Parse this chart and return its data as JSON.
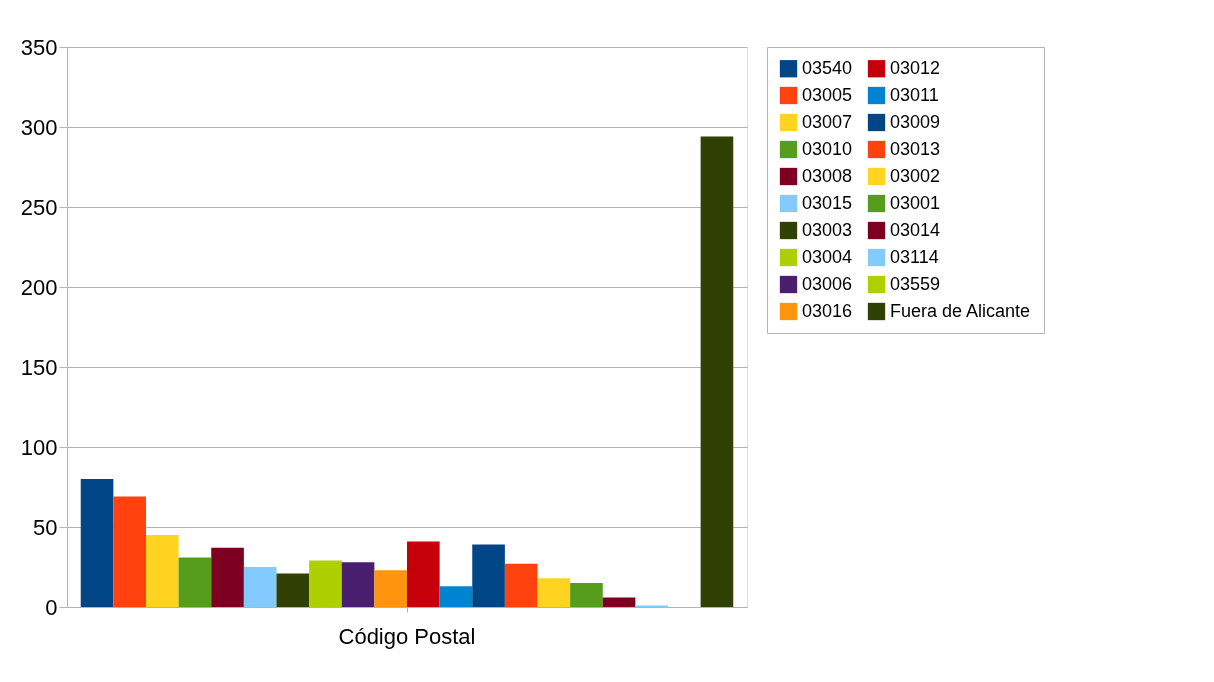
{
  "chart_data": {
    "type": "bar",
    "categories": [
      "Código Postal"
    ],
    "series": [
      {
        "name": "03540",
        "color": "#004586",
        "values": [
          80
        ]
      },
      {
        "name": "03005",
        "color": "#ff420e",
        "values": [
          69
        ]
      },
      {
        "name": "03007",
        "color": "#ffd320",
        "values": [
          45
        ]
      },
      {
        "name": "03010",
        "color": "#579d1c",
        "values": [
          31
        ]
      },
      {
        "name": "03008",
        "color": "#7e0021",
        "values": [
          37
        ]
      },
      {
        "name": "03015",
        "color": "#83caff",
        "values": [
          25
        ]
      },
      {
        "name": "03003",
        "color": "#314004",
        "values": [
          21
        ]
      },
      {
        "name": "03004",
        "color": "#aecf00",
        "values": [
          29
        ]
      },
      {
        "name": "03006",
        "color": "#4b1f6f",
        "values": [
          28
        ]
      },
      {
        "name": "03016",
        "color": "#ff950e",
        "values": [
          23
        ]
      },
      {
        "name": "03012",
        "color": "#c5000b",
        "values": [
          41
        ]
      },
      {
        "name": "03011",
        "color": "#0084d1",
        "values": [
          13
        ]
      },
      {
        "name": "03009",
        "color": "#004586",
        "values": [
          39
        ]
      },
      {
        "name": "03013",
        "color": "#ff420e",
        "values": [
          27
        ]
      },
      {
        "name": "03002",
        "color": "#ffd320",
        "values": [
          18
        ]
      },
      {
        "name": "03001",
        "color": "#579d1c",
        "values": [
          15
        ]
      },
      {
        "name": "03014",
        "color": "#7e0021",
        "values": [
          6
        ]
      },
      {
        "name": "03114",
        "color": "#83caff",
        "values": [
          1
        ]
      },
      {
        "name": "03559",
        "color": "#aecf00",
        "values": [
          0
        ]
      },
      {
        "name": "Fuera de Alicante",
        "color": "#314004",
        "values": [
          294
        ]
      }
    ],
    "ylim": [
      0,
      350
    ],
    "yticks": [
      0,
      50,
      100,
      150,
      200,
      250,
      300,
      350
    ],
    "grid": "y",
    "legend": "right"
  }
}
